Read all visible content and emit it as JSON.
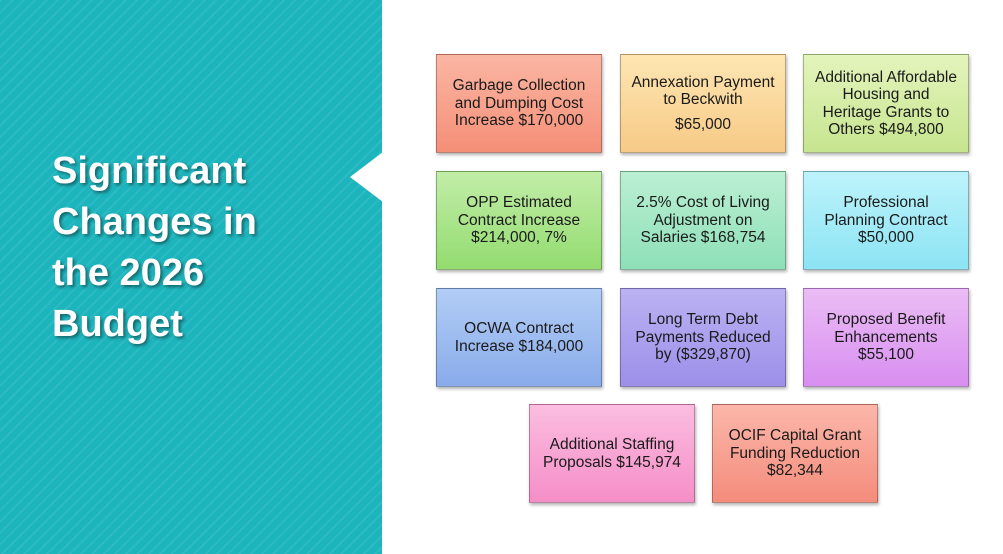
{
  "slide": {
    "title_lines": [
      "Significant",
      "Changes in",
      "the 2026",
      "Budget"
    ]
  },
  "boxes": [
    {
      "lines": [
        "Garbage Collection",
        "and Dumping Cost",
        "Increase $170,000"
      ]
    },
    {
      "lines": [
        "Annexation Payment",
        "to Beckwith",
        "$65,000"
      ]
    },
    {
      "lines": [
        "Additional Affordable",
        "Housing and",
        "Heritage Grants to",
        "Others $494,800"
      ]
    },
    {
      "lines": [
        "OPP Estimated",
        "Contract Increase",
        "$214,000, 7%"
      ]
    },
    {
      "lines": [
        "2.5% Cost of Living",
        "Adjustment on",
        "Salaries $168,754"
      ]
    },
    {
      "lines": [
        "Professional",
        "Planning Contract",
        "$50,000"
      ]
    },
    {
      "lines": [
        "OCWA Contract",
        "Increase $184,000"
      ]
    },
    {
      "lines": [
        "Long Term Debt",
        "Payments Reduced",
        "by ($329,870)"
      ]
    },
    {
      "lines": [
        "Proposed Benefit",
        "Enhancements",
        "$55,100"
      ]
    },
    {
      "lines": [
        "Additional Staffing",
        "Proposals $145,974"
      ]
    },
    {
      "lines": [
        "OCIF Capital Grant",
        "Funding Reduction",
        "$82,344"
      ]
    }
  ],
  "colors": {
    "panel": "#1db5bd",
    "title_text": "#ffffff"
  }
}
